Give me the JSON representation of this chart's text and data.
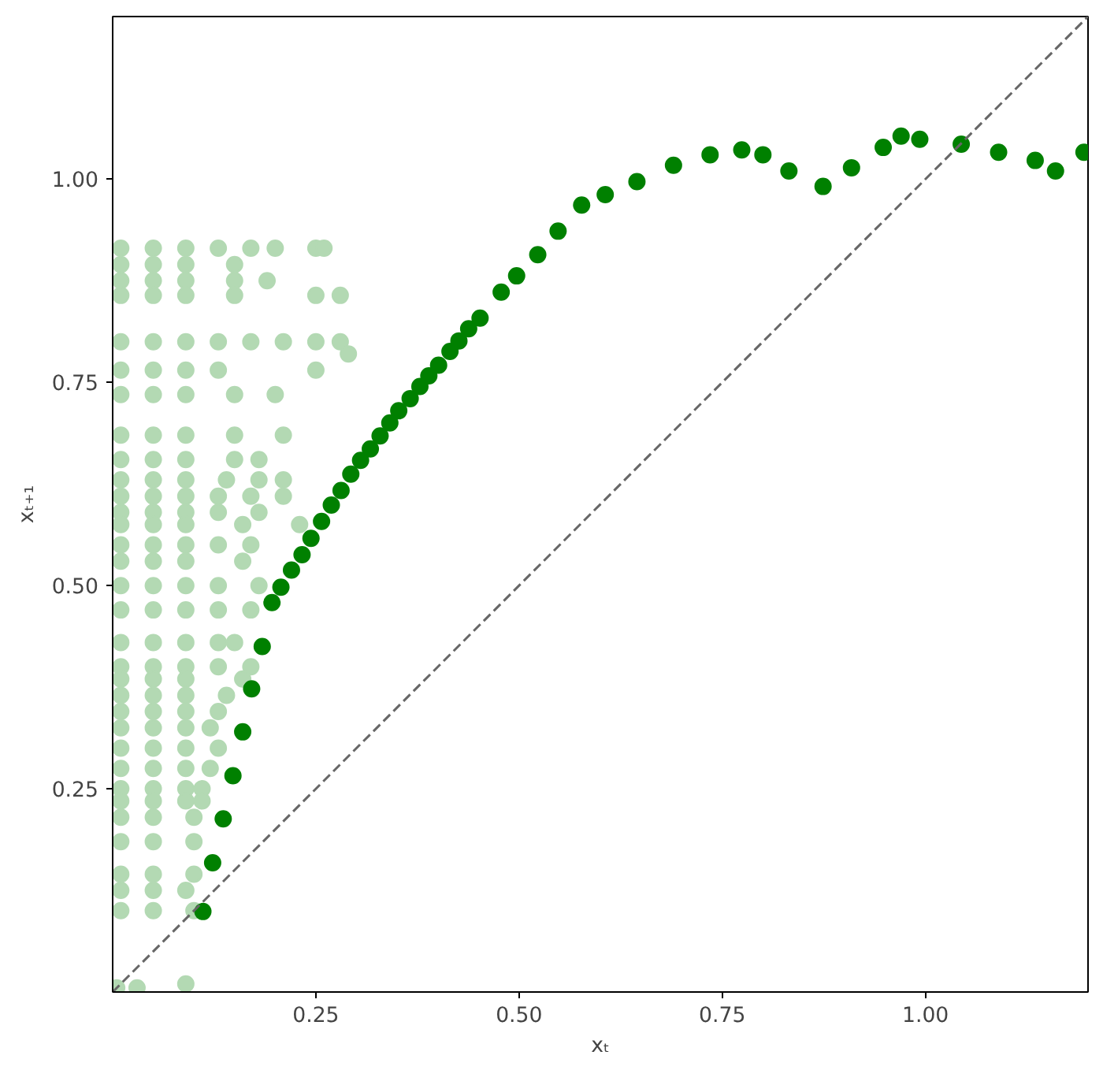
{
  "chart_data": {
    "type": "scatter",
    "xlabel": "xₜ",
    "ylabel": "xₜ₊₁",
    "xlim": [
      0,
      1.2
    ],
    "ylim": [
      0,
      1.2
    ],
    "xticks": [
      {
        "value": 0.25,
        "label": "0.25"
      },
      {
        "value": 0.5,
        "label": "0.50"
      },
      {
        "value": 0.75,
        "label": "0.75"
      },
      {
        "value": 1.0,
        "label": "1.00"
      }
    ],
    "yticks": [
      {
        "value": 0.25,
        "label": "0.25"
      },
      {
        "value": 0.5,
        "label": "0.50"
      },
      {
        "value": 0.75,
        "label": "0.75"
      },
      {
        "value": 1.0,
        "label": "1.00"
      }
    ],
    "grid": false,
    "series": [
      {
        "marker": "circle",
        "color": "#b3d9b3",
        "x": [
          0.01,
          0.05,
          0.09,
          0.13,
          0.17,
          0.2,
          0.25,
          0.26,
          0.01,
          0.05,
          0.09,
          0.15,
          0.01,
          0.05,
          0.09,
          0.15,
          0.19,
          0.01,
          0.05,
          0.09,
          0.15,
          0.25,
          0.28,
          0.01,
          0.05,
          0.09,
          0.13,
          0.17,
          0.21,
          0.25,
          0.28,
          0.29,
          0.01,
          0.05,
          0.09,
          0.13,
          0.25,
          0.01,
          0.05,
          0.09,
          0.15,
          0.2,
          0.01,
          0.05,
          0.09,
          0.15,
          0.21,
          0.01,
          0.05,
          0.09,
          0.15,
          0.18,
          0.01,
          0.05,
          0.09,
          0.14,
          0.18,
          0.21,
          0.01,
          0.05,
          0.09,
          0.13,
          0.17,
          0.21,
          0.01,
          0.05,
          0.09,
          0.13,
          0.18,
          0.01,
          0.05,
          0.09,
          0.16,
          0.23,
          0.01,
          0.05,
          0.09,
          0.13,
          0.17,
          0.01,
          0.05,
          0.09,
          0.16,
          0.01,
          0.05,
          0.09,
          0.13,
          0.18,
          0.01,
          0.05,
          0.09,
          0.13,
          0.17,
          0.01,
          0.05,
          0.09,
          0.13,
          0.15,
          0.01,
          0.05,
          0.09,
          0.13,
          0.17,
          0.01,
          0.05,
          0.09,
          0.16,
          0.01,
          0.05,
          0.09,
          0.14,
          0.01,
          0.05,
          0.09,
          0.13,
          0.01,
          0.05,
          0.09,
          0.12,
          0.01,
          0.05,
          0.09,
          0.13,
          0.01,
          0.05,
          0.09,
          0.12,
          0.01,
          0.05,
          0.09,
          0.11,
          0.01,
          0.05,
          0.09,
          0.11,
          0.01,
          0.05,
          0.1,
          0.01,
          0.05,
          0.1,
          0.01,
          0.05,
          0.1,
          0.01,
          0.05,
          0.09,
          0.01,
          0.05,
          0.1,
          0.005,
          0.03,
          0.09
        ],
        "values": [
          0.915,
          0.915,
          0.915,
          0.915,
          0.915,
          0.915,
          0.915,
          0.915,
          0.895,
          0.895,
          0.895,
          0.895,
          0.875,
          0.875,
          0.875,
          0.875,
          0.875,
          0.857,
          0.857,
          0.857,
          0.857,
          0.857,
          0.857,
          0.8,
          0.8,
          0.8,
          0.8,
          0.8,
          0.8,
          0.8,
          0.8,
          0.785,
          0.765,
          0.765,
          0.765,
          0.765,
          0.765,
          0.735,
          0.735,
          0.735,
          0.735,
          0.735,
          0.685,
          0.685,
          0.685,
          0.685,
          0.685,
          0.655,
          0.655,
          0.655,
          0.655,
          0.655,
          0.63,
          0.63,
          0.63,
          0.63,
          0.63,
          0.63,
          0.61,
          0.61,
          0.61,
          0.61,
          0.61,
          0.61,
          0.59,
          0.59,
          0.59,
          0.59,
          0.59,
          0.575,
          0.575,
          0.575,
          0.575,
          0.575,
          0.55,
          0.55,
          0.55,
          0.55,
          0.55,
          0.53,
          0.53,
          0.53,
          0.53,
          0.5,
          0.5,
          0.5,
          0.5,
          0.5,
          0.47,
          0.47,
          0.47,
          0.47,
          0.47,
          0.43,
          0.43,
          0.43,
          0.43,
          0.43,
          0.4,
          0.4,
          0.4,
          0.4,
          0.4,
          0.385,
          0.385,
          0.385,
          0.385,
          0.365,
          0.365,
          0.365,
          0.365,
          0.345,
          0.345,
          0.345,
          0.345,
          0.325,
          0.325,
          0.325,
          0.325,
          0.3,
          0.3,
          0.3,
          0.3,
          0.275,
          0.275,
          0.275,
          0.275,
          0.25,
          0.25,
          0.25,
          0.25,
          0.235,
          0.235,
          0.235,
          0.235,
          0.215,
          0.215,
          0.215,
          0.185,
          0.185,
          0.185,
          0.145,
          0.145,
          0.145,
          0.125,
          0.125,
          0.125,
          0.1,
          0.1,
          0.1,
          0.005,
          0.005,
          0.01
        ]
      },
      {
        "marker": "circle",
        "color": "#008000",
        "x": [
          0.111,
          0.123,
          0.136,
          0.148,
          0.16,
          0.171,
          0.184,
          0.196,
          0.207,
          0.22,
          0.233,
          0.244,
          0.257,
          0.269,
          0.281,
          0.293,
          0.305,
          0.317,
          0.329,
          0.341,
          0.352,
          0.366,
          0.378,
          0.389,
          0.401,
          0.415,
          0.426,
          0.438,
          0.452,
          0.478,
          0.497,
          0.523,
          0.548,
          0.577,
          0.606,
          0.645,
          0.69,
          0.735,
          0.774,
          0.8,
          0.832,
          0.874,
          0.909,
          0.948,
          0.97,
          0.993,
          1.044,
          1.09,
          1.135,
          1.16,
          1.195
        ],
        "values": [
          0.099,
          0.159,
          0.213,
          0.266,
          0.32,
          0.373,
          0.425,
          0.479,
          0.498,
          0.519,
          0.538,
          0.558,
          0.579,
          0.599,
          0.617,
          0.637,
          0.654,
          0.668,
          0.684,
          0.7,
          0.715,
          0.73,
          0.745,
          0.758,
          0.771,
          0.788,
          0.801,
          0.816,
          0.829,
          0.861,
          0.881,
          0.907,
          0.936,
          0.968,
          0.981,
          0.997,
          1.017,
          1.03,
          1.036,
          1.03,
          1.01,
          0.991,
          1.014,
          1.039,
          1.053,
          1.049,
          1.043,
          1.033,
          1.023,
          1.01,
          1.033
        ]
      },
      {
        "type": "line",
        "marker": "none",
        "line_style": "dashed",
        "color": "#666666",
        "x": [
          0,
          1.2
        ],
        "values": [
          0,
          1.2
        ]
      }
    ]
  }
}
